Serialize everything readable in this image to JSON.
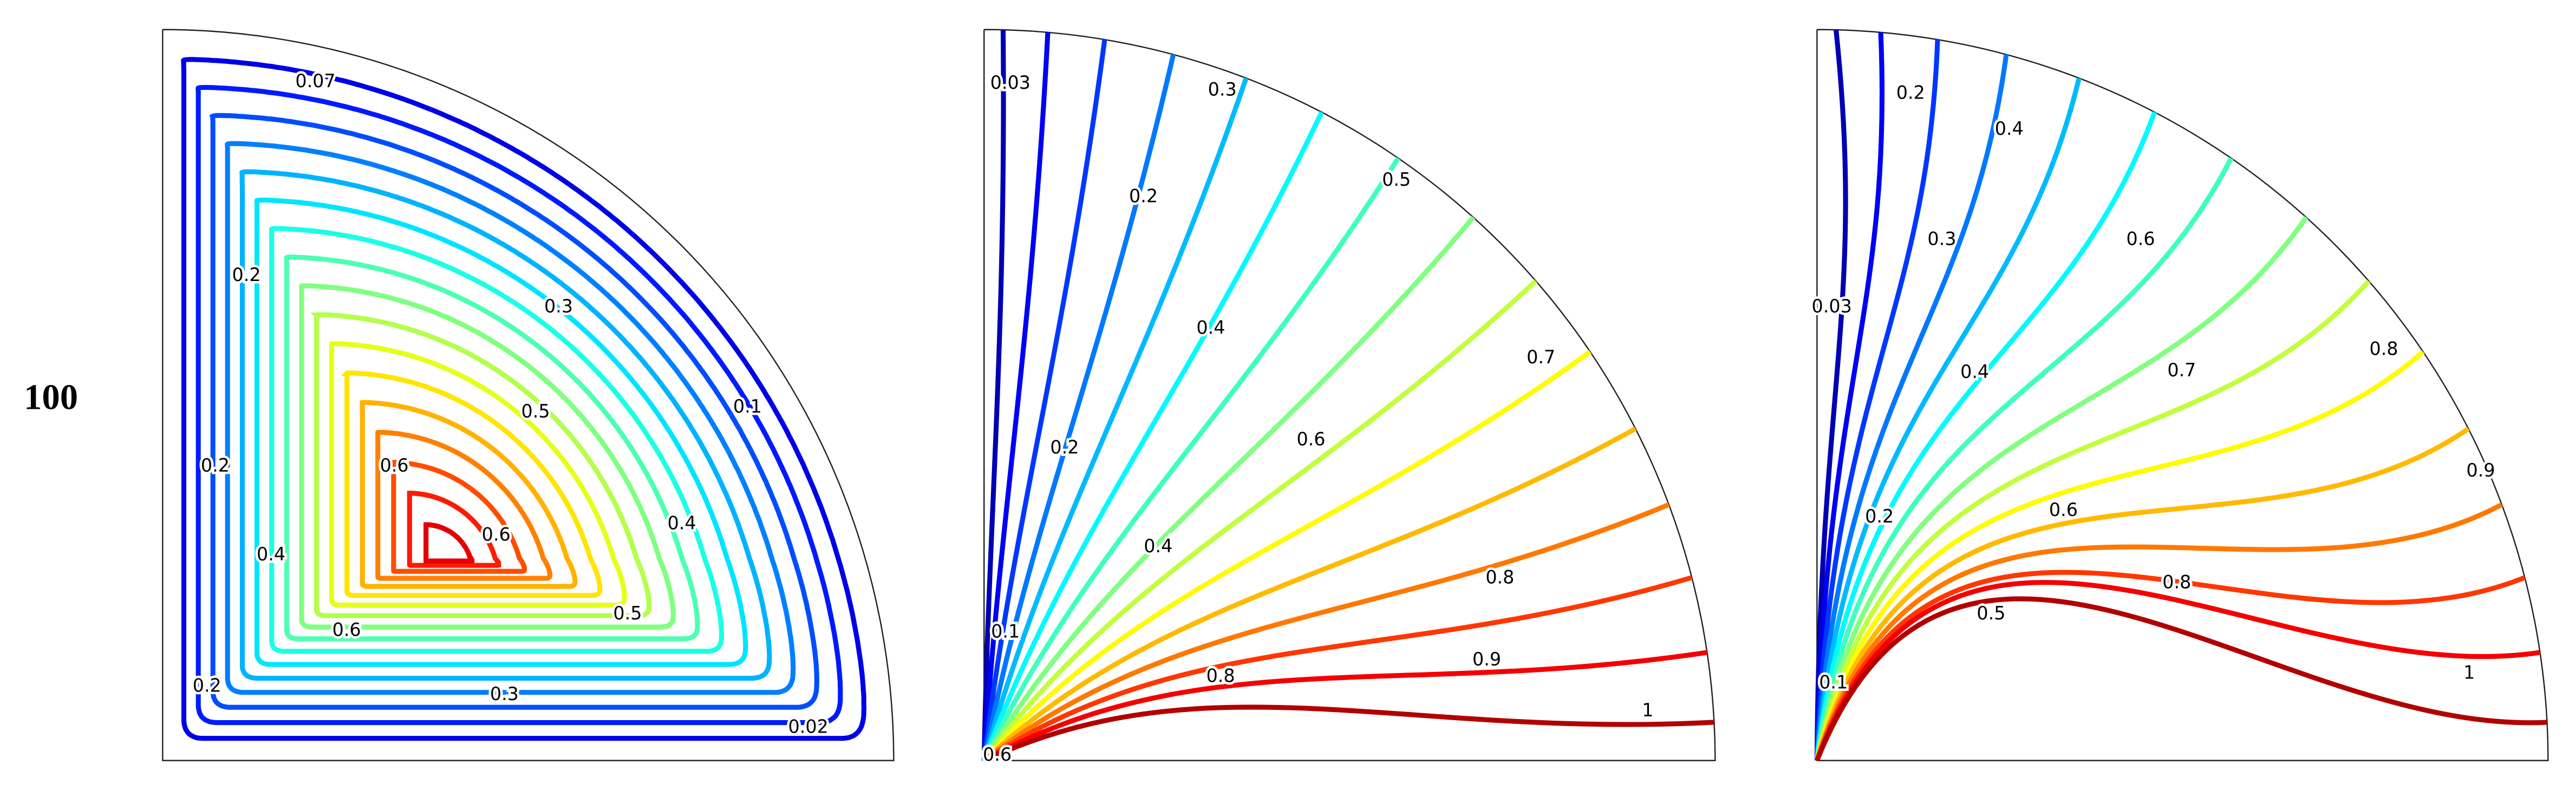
{
  "row_label": "100",
  "panels": [
    {
      "contour_labels": [
        "0.07",
        "0.2",
        "0.3",
        "0.1",
        "0.5",
        "0.6",
        "0.2",
        "0.6",
        "0.4",
        "0.4",
        "0.5",
        "0.6",
        "0.2",
        "0.3",
        "0.02"
      ]
    },
    {
      "contour_labels": [
        "0.03",
        "0.3",
        "0.2",
        "0.5",
        "0.4",
        "0.7",
        "0.6",
        "0.2",
        "0.4",
        "0.8",
        "0.1",
        "0.9",
        "0.8",
        "1",
        "0.6"
      ]
    },
    {
      "contour_labels": [
        "0.2",
        "0.4",
        "0.3",
        "0.6",
        "0.03",
        "0.8",
        "0.4",
        "0.7",
        "0.9",
        "0.2",
        "0.6",
        "0.8",
        "0.5",
        "1",
        "0.1"
      ]
    }
  ]
}
